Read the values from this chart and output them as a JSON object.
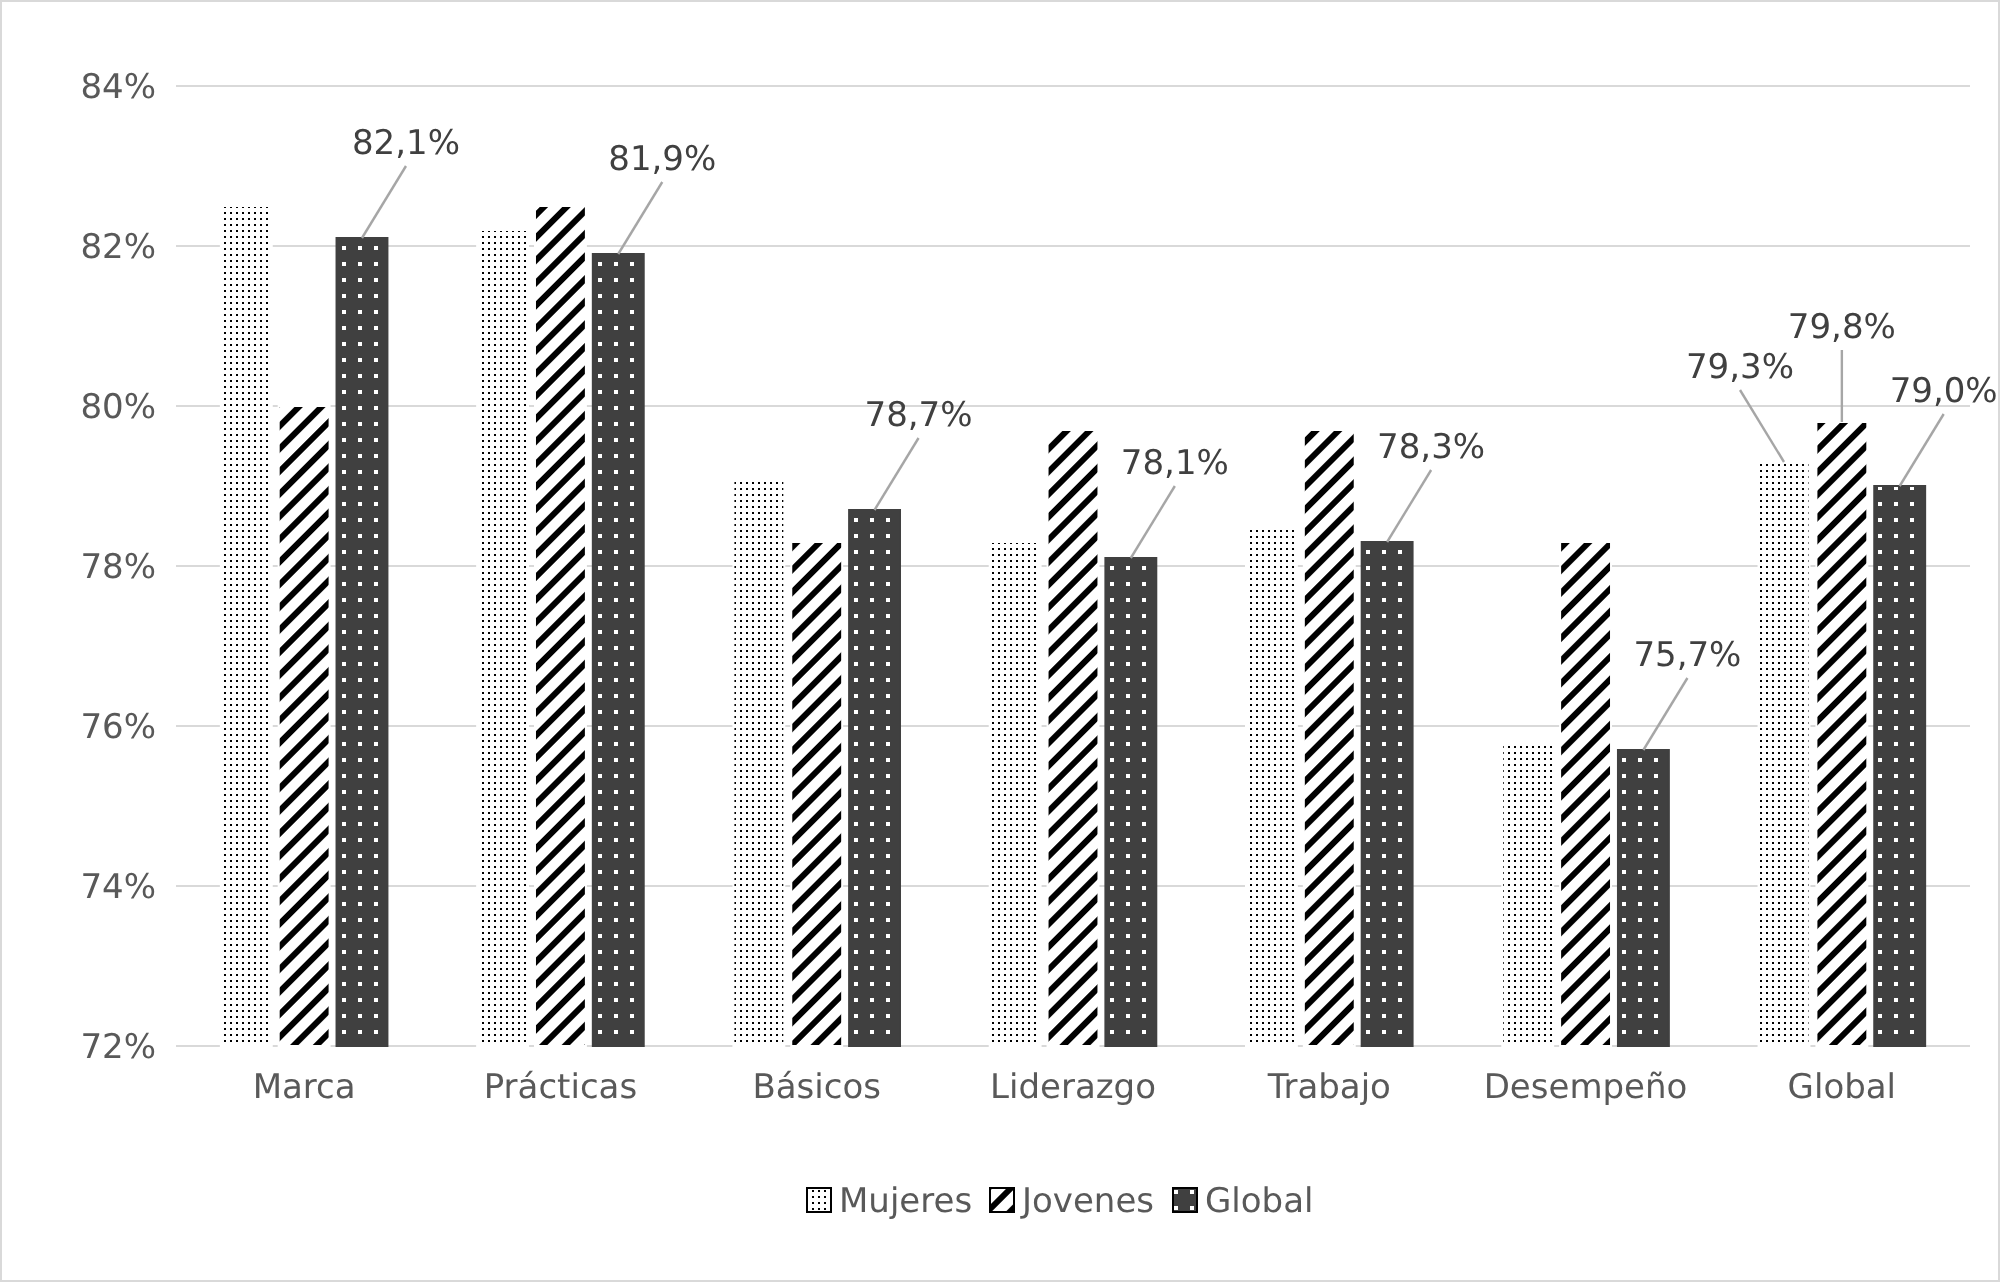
{
  "chart_data": {
    "type": "bar",
    "categories": [
      "Marca",
      "Prácticas",
      "Básicos",
      "Liderazgo",
      "Trabajo",
      "Desempeño",
      "Global"
    ],
    "series": [
      {
        "name": "Mujeres",
        "color": "#ffffff",
        "values": [
          82.5,
          82.2,
          79.1,
          78.3,
          78.5,
          75.8,
          79.3
        ],
        "value_labels": [
          null,
          null,
          null,
          null,
          null,
          null,
          "79,3%"
        ]
      },
      {
        "name": "Jovenes",
        "color": "#ffffff",
        "values": [
          80.0,
          82.5,
          78.3,
          79.7,
          79.7,
          78.3,
          79.8
        ],
        "value_labels": [
          null,
          null,
          null,
          null,
          null,
          null,
          "79,8%"
        ]
      },
      {
        "name": "Global",
        "color": "#404040",
        "values": [
          82.1,
          81.9,
          78.7,
          78.1,
          78.3,
          75.7,
          79.0
        ],
        "value_labels": [
          "82,1%",
          "81,9%",
          "78,7%",
          "78,1%",
          "78,3%",
          "75,7%",
          "79,0%"
        ]
      }
    ],
    "ylim": [
      72,
      84
    ],
    "yticks": [
      {
        "value": 72,
        "label": "72%"
      },
      {
        "value": 74,
        "label": "74%"
      },
      {
        "value": 76,
        "label": "76%"
      },
      {
        "value": 78,
        "label": "78%"
      },
      {
        "value": 80,
        "label": "80%"
      },
      {
        "value": 82,
        "label": "82%"
      },
      {
        "value": 84,
        "label": "84%"
      }
    ],
    "grid": "y",
    "legend": "bottom"
  }
}
